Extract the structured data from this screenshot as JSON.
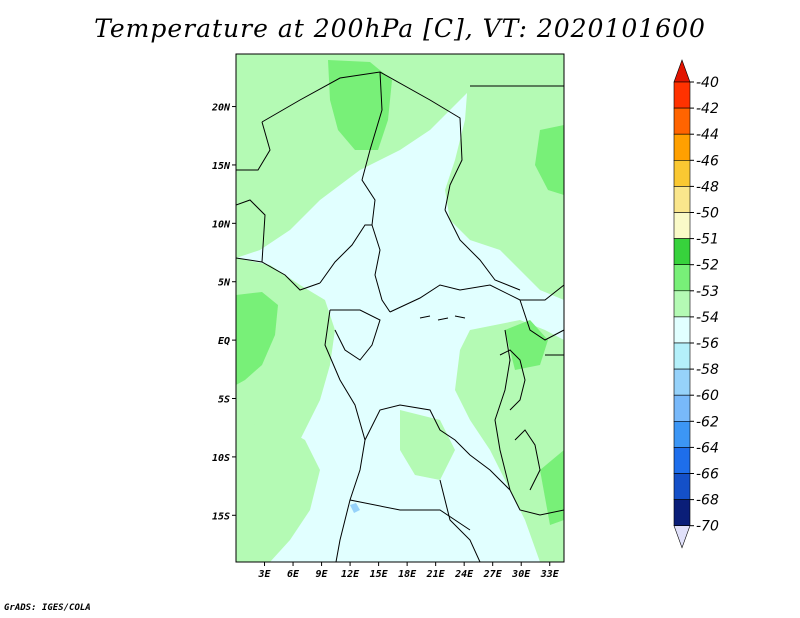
{
  "title": "Temperature at 200hPa [C], VT: 2020101600",
  "credit": "GrADS: IGES/COLA",
  "map": {
    "lon_range": [
      0,
      34.5
    ],
    "lat_range": [
      -19,
      24.5
    ],
    "lat_ticks": [
      {
        "value": 20,
        "label": "20N"
      },
      {
        "value": 15,
        "label": "15N"
      },
      {
        "value": 10,
        "label": "10N"
      },
      {
        "value": 5,
        "label": "5N"
      },
      {
        "value": 0,
        "label": "EQ"
      },
      {
        "value": -5,
        "label": "5S"
      },
      {
        "value": -10,
        "label": "10S"
      },
      {
        "value": -15,
        "label": "15S"
      }
    ],
    "lon_ticks": [
      {
        "value": 3,
        "label": "3E"
      },
      {
        "value": 6,
        "label": "6E"
      },
      {
        "value": 9,
        "label": "9E"
      },
      {
        "value": 12,
        "label": "12E"
      },
      {
        "value": 15,
        "label": "15E"
      },
      {
        "value": 18,
        "label": "18E"
      },
      {
        "value": 21,
        "label": "21E"
      },
      {
        "value": 24,
        "label": "24E"
      },
      {
        "value": 27,
        "label": "27E"
      },
      {
        "value": 30,
        "label": "30E"
      },
      {
        "value": 33,
        "label": "33E"
      }
    ],
    "background_color": "#e1ffff",
    "region_colors": {
      "light_green": "#b4fab4",
      "mid_green": "#78f078",
      "light_blue": "#96d2fa"
    }
  },
  "legend": {
    "entries": [
      {
        "label": "-40",
        "color": "#e11400"
      },
      {
        "label": "-42",
        "color": "#ff3200"
      },
      {
        "label": "-44",
        "color": "#ff6400"
      },
      {
        "label": "-46",
        "color": "#ffa000"
      },
      {
        "label": "-48",
        "color": "#fac832"
      },
      {
        "label": "-50",
        "color": "#fae68c"
      },
      {
        "label": "-51",
        "color": "#fafac8"
      },
      {
        "label": "-52",
        "color": "#37d23c"
      },
      {
        "label": "-53",
        "color": "#78f078"
      },
      {
        "label": "-54",
        "color": "#b4fab4"
      },
      {
        "label": "-56",
        "color": "#e1ffff"
      },
      {
        "label": "-58",
        "color": "#b4f0fa"
      },
      {
        "label": "-60",
        "color": "#96d2fa"
      },
      {
        "label": "-62",
        "color": "#78b9fa"
      },
      {
        "label": "-64",
        "color": "#3c96f5"
      },
      {
        "label": "-66",
        "color": "#1e6eeb"
      },
      {
        "label": "-68",
        "color": "#1450c8"
      },
      {
        "label": "-70",
        "color": "#0a1e78"
      }
    ],
    "top_arrow_color": "#e11400",
    "bottom_arrow_color": "#e1e1fa"
  }
}
